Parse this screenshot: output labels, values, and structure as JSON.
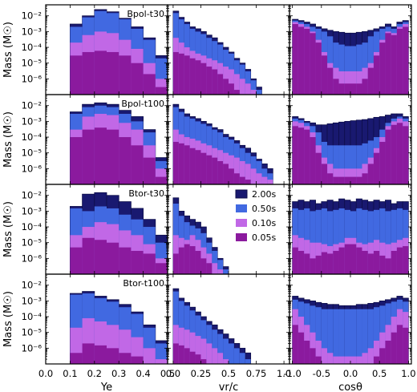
{
  "chart_data": {
    "type": "bar",
    "layout": "4x3 grid of log-scale step histograms",
    "yscale": "log",
    "ylim": [
      1e-07,
      0.05
    ],
    "ylabel": "Mass (M☉)",
    "ytick_labels": [
      "10⁻²",
      "10⁻³",
      "10⁻⁴",
      "10⁻⁵",
      "10⁻⁶"
    ],
    "row_titles": [
      "Bpol-t30",
      "Bpol-t100",
      "Btor-t30",
      "Btor-t100"
    ],
    "columns": [
      {
        "xlabel": "Ye",
        "xlim": [
          0.0,
          0.5
        ],
        "tick_labels": [
          "0.0",
          "0.1",
          "0.2",
          "0.3",
          "0.4",
          "0.5"
        ],
        "bin_start": 0.1,
        "bin_width": 0.05
      },
      {
        "xlabel": "vr/c",
        "xlim": [
          -0.05,
          1.05
        ],
        "tick_labels": [
          "0.0",
          "0.25",
          "0.5",
          "0.75",
          "1.0"
        ],
        "bin_start": 0.0,
        "bin_width": 0.05
      },
      {
        "xlabel": "cosθ",
        "xlim": [
          -1.05,
          1.05
        ],
        "tick_labels": [
          "-1.0",
          "-0.5",
          "0.0",
          "0.5",
          "1.0"
        ],
        "bin_start": -1.0,
        "bin_width": 0.1
      }
    ],
    "legend": {
      "position": "center of row 3, column 2",
      "entries": [
        {
          "name": "2.00s",
          "color": "#191970"
        },
        {
          "name": "0.50s",
          "color": "#4169e1"
        },
        {
          "name": "0.10s",
          "color": "#c168e6"
        },
        {
          "name": "0.05s",
          "color": "#8b1a9e"
        }
      ]
    },
    "series_order": [
      "2.00s",
      "0.50s",
      "0.10s",
      "0.05s"
    ],
    "panels": [
      [
        {
          "hists": [
            [
              0.003,
              0.01,
              0.025,
              0.018,
              0.007,
              0.002,
              0.0004,
              3e-05
            ],
            [
              0.002,
              0.008,
              0.02,
              0.015,
              0.006,
              0.0015,
              0.0003,
              2e-05
            ],
            [
              0.0002,
              0.0006,
              0.001,
              0.0008,
              0.0003,
              8e-05,
              1e-05,
              1e-06
            ],
            [
              3e-05,
              5e-05,
              6e-05,
              5e-05,
              3e-05,
              1e-05,
              2e-06,
              3e-07
            ]
          ]
        },
        {
          "hists": [
            [
              0.02,
              0.008,
              0.004,
              0.002,
              0.0015,
              0.001,
              0.0006,
              0.0004,
              0.0002,
              0.0001,
              5e-05,
              2e-05,
              1e-05,
              4e-06,
              1e-06,
              3e-07,
              1e-07
            ],
            [
              0.015,
              0.006,
              0.003,
              0.0015,
              0.001,
              0.0007,
              0.0004,
              0.00025,
              0.00015,
              7e-05,
              4e-05,
              1.5e-05,
              8e-06,
              3e-06,
              8e-07,
              2e-07,
              1e-07
            ],
            [
              0.0004,
              0.0002,
              0.0001,
              6e-05,
              4e-05,
              3e-05,
              2e-05,
              1.5e-05,
              1e-05,
              6e-06,
              4e-06,
              2e-06,
              1e-06,
              5e-07,
              2e-07,
              1e-07,
              1e-07
            ],
            [
              5e-05,
              4e-05,
              3e-05,
              2e-05,
              1.5e-05,
              1e-05,
              6e-06,
              4e-06,
              2e-06,
              1e-06,
              5e-07,
              2e-07,
              1e-07,
              1e-07,
              1e-07,
              1e-07,
              1e-07
            ]
          ]
        },
        {
          "hists": [
            [
              0.006,
              0.005,
              0.004,
              0.003,
              0.002,
              0.0015,
              0.0012,
              0.001,
              0.0009,
              0.0008,
              0.0008,
              0.0009,
              0.001,
              0.0012,
              0.0015,
              0.002,
              0.003,
              0.002,
              0.004,
              0.005
            ],
            [
              0.005,
              0.004,
              0.003,
              0.002,
              0.0015,
              0.001,
              0.0005,
              0.0002,
              0.00015,
              0.00012,
              0.00012,
              0.00015,
              0.0002,
              0.0005,
              0.001,
              0.0015,
              0.002,
              0.0015,
              0.003,
              0.004
            ],
            [
              0.004,
              0.003,
              0.002,
              0.001,
              0.0003,
              5e-05,
              1e-05,
              5e-06,
              3e-06,
              3e-06,
              3e-06,
              3e-06,
              5e-06,
              1e-05,
              5e-05,
              0.0003,
              0.001,
              0.0008,
              0.002,
              0.003
            ],
            [
              0.003,
              0.002,
              0.0015,
              0.0008,
              0.0002,
              3e-05,
              5e-06,
              1e-06,
              5e-07,
              5e-07,
              5e-07,
              5e-07,
              1e-06,
              5e-06,
              3e-05,
              0.0002,
              0.0008,
              0.0006,
              0.0015,
              0.002
            ]
          ]
        }
      ],
      [
        {
          "hists": [
            [
              0.004,
              0.012,
              0.015,
              0.012,
              0.005,
              0.002,
              0.0003,
              5e-06
            ],
            [
              0.003,
              0.008,
              0.01,
              0.008,
              0.003,
              0.001,
              0.0002,
              3e-06
            ],
            [
              0.0003,
              0.002,
              0.003,
              0.0025,
              0.0008,
              0.0003,
              3e-05,
              1e-06
            ],
            [
              0.0001,
              0.0003,
              0.0004,
              0.0003,
              0.0001,
              3e-05,
              5e-06,
              3e-07
            ]
          ]
        },
        {
          "hists": [
            [
              0.012,
              0.006,
              0.003,
              0.002,
              0.0015,
              0.001,
              0.0007,
              0.0004,
              0.0003,
              0.00015,
              0.0001,
              6e-05,
              3e-05,
              2e-05,
              1e-05,
              4e-06,
              2e-06,
              1e-06
            ],
            [
              0.008,
              0.004,
              0.002,
              0.0015,
              0.001,
              0.0007,
              0.0005,
              0.0003,
              0.0002,
              0.0001,
              7e-05,
              4e-05,
              2e-05,
              1e-05,
              6e-06,
              3e-06,
              1e-06,
              5e-07
            ],
            [
              0.0003,
              0.00015,
              0.0001,
              8e-05,
              6e-05,
              4e-05,
              3e-05,
              2e-05,
              1.5e-05,
              1e-05,
              7e-06,
              5e-06,
              3e-06,
              2e-06,
              1e-06,
              5e-07,
              3e-07,
              2e-07
            ],
            [
              5e-05,
              4e-05,
              3e-05,
              2e-05,
              1.5e-05,
              1e-05,
              7e-06,
              5e-06,
              3e-06,
              2e-06,
              1e-06,
              5e-07,
              3e-07,
              2e-07,
              1e-07,
              1e-07,
              1e-07,
              1e-07
            ]
          ]
        },
        {
          "hists": [
            [
              0.002,
              0.0015,
              0.001,
              0.0008,
              0.0006,
              0.0006,
              0.0007,
              0.0008,
              0.0009,
              0.001,
              0.0011,
              0.0012,
              0.0013,
              0.0015,
              0.0018,
              0.002,
              0.0025,
              0.003,
              0.003,
              0.002
            ],
            [
              0.0015,
              0.0012,
              0.0008,
              0.0005,
              0.0002,
              5e-05,
              3e-05,
              3e-05,
              3e-05,
              3e-05,
              3e-05,
              3e-05,
              4e-05,
              6e-05,
              0.0001,
              0.0003,
              0.0008,
              0.0015,
              0.002,
              0.0015
            ],
            [
              0.001,
              0.0008,
              0.0005,
              0.0002,
              3e-05,
              5e-06,
              2e-06,
              1e-06,
              1e-06,
              1e-06,
              1e-06,
              1e-06,
              2e-06,
              5e-06,
              2e-05,
              0.0001,
              0.0005,
              0.001,
              0.0015,
              0.001
            ],
            [
              0.0005,
              0.0004,
              0.0003,
              0.0001,
              1e-05,
              2e-06,
              5e-07,
              3e-07,
              3e-07,
              3e-07,
              3e-07,
              3e-07,
              5e-07,
              2e-06,
              1e-05,
              5e-05,
              0.0003,
              0.0006,
              0.0008,
              0.0005
            ]
          ]
        }
      ],
      [
        {
          "hists": [
            [
              0.002,
              0.012,
              0.015,
              0.01,
              0.004,
              0.0015,
              0.0003,
              3e-05
            ],
            [
              0.0015,
              0.001,
              0.002,
              0.0015,
              0.0006,
              0.0003,
              0.0001,
              1e-05
            ],
            [
              3e-05,
              0.0001,
              0.0002,
              0.00015,
              6e-05,
              3e-05,
              8e-06,
              1e-06
            ],
            [
              5e-06,
              2e-05,
              1.5e-05,
              1e-05,
              5e-06,
              3e-06,
              2e-06,
              5e-07
            ]
          ]
        },
        {
          "hists": [
            [
              0.007,
              0.001,
              0.0005,
              0.0003,
              0.0002,
              0.0001,
              2e-05,
              5e-06,
              1e-06,
              3e-07,
              1e-07
            ],
            [
              0.003,
              0.0005,
              0.0002,
              0.00012,
              8e-05,
              4e-05,
              1e-05,
              3e-06,
              8e-07,
              2e-07,
              1e-07
            ],
            [
              3e-05,
              2e-05,
              1.5e-05,
              3e-05,
              1.5e-05,
              5e-06,
              2e-06,
              5e-07,
              2e-07,
              1e-07,
              1e-07
            ],
            [
              2e-06,
              5e-06,
              8e-06,
              6e-06,
              3e-06,
              1e-06,
              5e-07,
              1e-07,
              1e-07,
              1e-07,
              1e-07
            ]
          ]
        },
        {
          "hists": [
            [
              0.004,
              0.005,
              0.004,
              0.005,
              0.003,
              0.004,
              0.005,
              0.004,
              0.006,
              0.005,
              0.004,
              0.006,
              0.005,
              0.004,
              0.005,
              0.004,
              0.005,
              0.003,
              0.004,
              0.004
            ],
            [
              0.0015,
              0.0012,
              0.0015,
              0.001,
              0.0012,
              0.0015,
              0.001,
              0.0012,
              0.0015,
              0.0012,
              0.001,
              0.0015,
              0.0012,
              0.001,
              0.0012,
              0.0015,
              0.001,
              0.0012,
              0.0015,
              0.0012
            ],
            [
              3e-05,
              2e-05,
              1.5e-05,
              1e-05,
              1e-05,
              8e-06,
              6e-06,
              8e-06,
              1e-05,
              2e-05,
              2e-05,
              1e-05,
              8e-06,
              1e-05,
              1.5e-05,
              1e-05,
              8e-06,
              1e-05,
              1.5e-05,
              2e-05
            ],
            [
              5e-06,
              3e-06,
              2e-06,
              1e-06,
              1.5e-06,
              2.5e-06,
              2e-06,
              3e-06,
              5e-06,
              8e-06,
              8e-06,
              5e-06,
              3e-06,
              2e-06,
              3e-06,
              1.5e-06,
              1e-06,
              3e-06,
              5e-06,
              6e-06
            ]
          ]
        }
      ],
      [
        {
          "hists": [
            [
              0.003,
              0.004,
              0.002,
              0.0012,
              0.0006,
              0.0002,
              3e-05,
              3e-06
            ],
            [
              0.0025,
              0.003,
              0.0015,
              0.0009,
              0.0004,
              0.00015,
              2e-05,
              2e-06
            ],
            [
              2e-05,
              8e-05,
              5e-05,
              3e-05,
              1.5e-05,
              5e-06,
              1e-06,
              2e-07
            ],
            [
              5e-07,
              2e-06,
              1.5e-06,
              1e-06,
              5e-07,
              3e-07,
              1e-07,
              1e-07
            ]
          ]
        },
        {
          "hists": [
            [
              0.006,
              0.0015,
              0.0008,
              0.0004,
              0.0002,
              0.0001,
              5e-05,
              3e-05,
              1.5e-05,
              8e-06,
              4e-06,
              2e-06,
              1e-06,
              5e-07
            ],
            [
              0.004,
              0.001,
              0.0005,
              0.00025,
              0.00012,
              6e-05,
              3e-05,
              1.5e-05,
              8e-06,
              4e-06,
              2e-06,
              1e-06,
              5e-07,
              2e-07
            ],
            [
              3e-05,
              2e-05,
              1.5e-05,
              1e-05,
              6e-06,
              4e-06,
              2e-06,
              1e-06,
              5e-07,
              2e-07,
              1e-07,
              1e-07,
              1e-07,
              1e-07
            ],
            [
              2e-06,
              1.5e-06,
              1e-06,
              6e-07,
              4e-07,
              2e-07,
              1e-07,
              1e-07,
              1e-07,
              1e-07,
              1e-07,
              1e-07,
              1e-07,
              1e-07
            ]
          ]
        },
        {
          "hists": [
            [
              0.002,
              0.0015,
              0.0012,
              0.001,
              0.0008,
              0.0007,
              0.0006,
              0.0006,
              0.0005,
              0.0005,
              0.0005,
              0.0006,
              0.0006,
              0.0007,
              0.0008,
              0.001,
              0.0012,
              0.0015,
              0.002,
              0.0015
            ],
            [
              0.0012,
              0.0009,
              0.0007,
              0.0005,
              0.0004,
              0.0003,
              0.0003,
              0.0003,
              0.0003,
              0.0003,
              0.0003,
              0.0003,
              0.0003,
              0.0003,
              0.0004,
              0.0005,
              0.0007,
              0.0009,
              0.0012,
              0.0009
            ],
            [
              0.0003,
              0.0001,
              3e-05,
              1e-05,
              3e-06,
              1e-06,
              5e-07,
              3e-07,
              3e-07,
              3e-07,
              3e-07,
              3e-07,
              5e-07,
              1e-06,
              3e-06,
              1e-05,
              3e-05,
              0.0001,
              0.0003,
              0.0002
            ],
            [
              3e-05,
              1e-05,
              3e-06,
              1e-06,
              3e-07,
              1e-07,
              1e-07,
              1e-07,
              1e-07,
              1e-07,
              1e-07,
              1e-07,
              1e-07,
              1e-07,
              3e-07,
              1e-06,
              3e-06,
              1e-05,
              3e-05,
              2e-05
            ]
          ]
        }
      ]
    ]
  }
}
